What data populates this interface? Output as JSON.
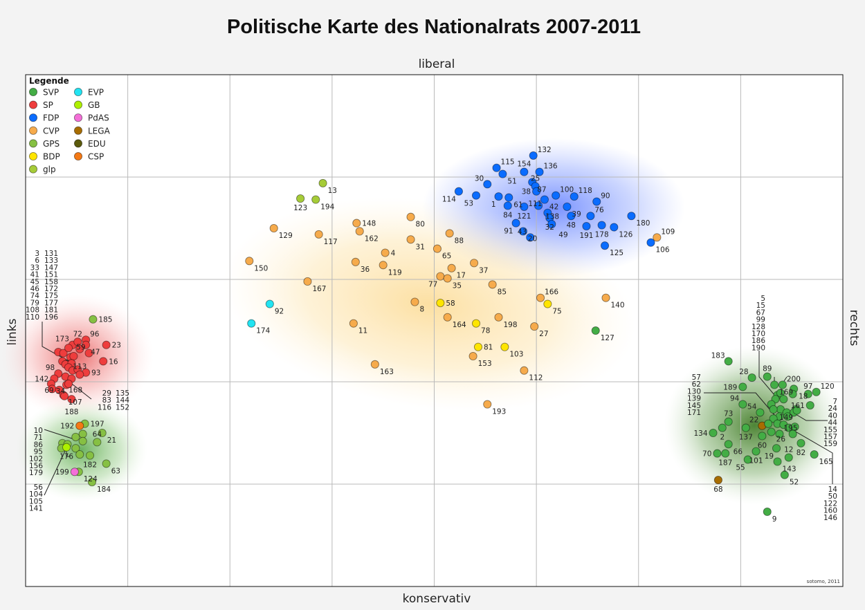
{
  "chart_data": {
    "type": "scatter",
    "title": "Politische Karte des Nationalrats 2007-2011",
    "xlabel_left": "links",
    "xlabel_right": "rechts",
    "ylabel_top": "liberal",
    "ylabel_bottom": "konservativ",
    "credit": "sotomo, 2011",
    "xlim": [
      -400,
      400
    ],
    "ylim": [
      -250,
      250
    ],
    "grid": true,
    "legend": {
      "title": "Legende",
      "placement": "top-left",
      "entries": [
        "SVP",
        "SP",
        "FDP",
        "CVP",
        "GPS",
        "BDP",
        "glp",
        "EVP",
        "GB",
        "PdAS",
        "LEGA",
        "EDU",
        "CSP"
      ]
    },
    "party_colors": {
      "SVP": "#43ad45",
      "SP": "#ee3d3d",
      "FDP": "#0a6cff",
      "CVP": "#f6ab4c",
      "GPS": "#86c043",
      "BDP": "#ffe500",
      "glp": "#a6cc38",
      "EVP": "#22e4f2",
      "GB": "#aef000",
      "PdAS": "#f46fd8",
      "LEGA": "#a86d00",
      "EDU": "#5b5a0c",
      "CSP": "#f47914"
    },
    "points": [
      [
        "13",
        "glp",
        -109,
        144,
        "se"
      ],
      [
        "123",
        "glp",
        -131,
        129,
        "s"
      ],
      [
        "194",
        "glp",
        -116,
        128,
        "se"
      ],
      [
        "129",
        "CVP",
        -157,
        100,
        "se"
      ],
      [
        "117",
        "CVP",
        -113,
        94,
        "se"
      ],
      [
        "148",
        "CVP",
        -76,
        105,
        "e"
      ],
      [
        "162",
        "CVP",
        -73,
        97,
        "se"
      ],
      [
        "80",
        "CVP",
        -23,
        111,
        "se"
      ],
      [
        "31",
        "CVP",
        -23,
        89,
        "se"
      ],
      [
        "88",
        "CVP",
        15,
        95,
        "se"
      ],
      [
        "65",
        "CVP",
        3,
        80,
        "se"
      ],
      [
        "4",
        "CVP",
        -48,
        76,
        "e"
      ],
      [
        "36",
        "CVP",
        -77,
        67,
        "se"
      ],
      [
        "119",
        "CVP",
        -50,
        64,
        "se"
      ],
      [
        "150",
        "CVP",
        -181,
        68,
        "se"
      ],
      [
        "167",
        "CVP",
        -124,
        48,
        "se"
      ],
      [
        "37",
        "CVP",
        39,
        66,
        "se"
      ],
      [
        "17",
        "CVP",
        17,
        61,
        "se"
      ],
      [
        "77",
        "CVP",
        6,
        53,
        "sw"
      ],
      [
        "35",
        "CVP",
        13,
        51,
        "se"
      ],
      [
        "85",
        "CVP",
        57,
        45,
        "se"
      ],
      [
        "8",
        "CVP",
        -19,
        28,
        "se"
      ],
      [
        "164",
        "CVP",
        13,
        13,
        "se"
      ],
      [
        "198",
        "CVP",
        63,
        13,
        "se"
      ],
      [
        "11",
        "CVP",
        -79,
        7,
        "se"
      ],
      [
        "27",
        "CVP",
        98,
        4,
        "se"
      ],
      [
        "166",
        "CVP",
        104,
        32,
        "ne"
      ],
      [
        "140",
        "CVP",
        168,
        32,
        "se"
      ],
      [
        "153",
        "CVP",
        38,
        -25,
        "se"
      ],
      [
        "112",
        "CVP",
        88,
        -39,
        "se"
      ],
      [
        "163",
        "CVP",
        -58,
        -33,
        "se"
      ],
      [
        "193",
        "CVP",
        52,
        -72,
        "se"
      ],
      [
        "109",
        "CVP",
        218,
        91,
        "ne"
      ],
      [
        "58",
        "BDP",
        6,
        27,
        "e"
      ],
      [
        "78",
        "BDP",
        41,
        7,
        "se"
      ],
      [
        "81",
        "BDP",
        43,
        -16,
        "se"
      ],
      [
        "103",
        "BDP",
        69,
        -16,
        "se"
      ],
      [
        "75",
        "BDP",
        111,
        26,
        "se"
      ],
      [
        "92",
        "EVP",
        -161,
        26,
        "se"
      ],
      [
        "174",
        "EVP",
        -179,
        7,
        "se"
      ],
      [
        "127",
        "SVP",
        158,
        0,
        "se"
      ],
      [
        "132",
        "FDP",
        97,
        171,
        "ne"
      ],
      [
        "115",
        "FDP",
        61,
        159,
        "ne"
      ],
      [
        "154",
        "FDP",
        88,
        155,
        "n"
      ],
      [
        "136",
        "FDP",
        103,
        155,
        "ne"
      ],
      [
        "51",
        "FDP",
        67,
        153,
        "se"
      ],
      [
        "30",
        "FDP",
        52,
        143,
        "nw"
      ],
      [
        "87",
        "FDP",
        96,
        145,
        "w"
      ],
      [
        "25",
        "FDP",
        99,
        141,
        "se"
      ],
      [
        "38",
        "FDP",
        100,
        136,
        "se"
      ],
      [
        "114",
        "FDP",
        24,
        136,
        "sw"
      ],
      [
        "53",
        "FDP",
        41,
        132,
        "sw"
      ],
      [
        "61",
        "FDP",
        73,
        130,
        "ne"
      ],
      [
        "1",
        "FDP",
        63,
        131,
        "sw"
      ],
      [
        "100",
        "FDP",
        119,
        132,
        "ne"
      ],
      [
        "118",
        "FDP",
        137,
        131,
        "ne"
      ],
      [
        "90",
        "FDP",
        159,
        126,
        "ne"
      ],
      [
        "42",
        "FDP",
        108,
        128,
        "se"
      ],
      [
        "84",
        "FDP",
        72,
        122,
        "sw"
      ],
      [
        "121",
        "FDP",
        88,
        121,
        "s"
      ],
      [
        "138",
        "FDP",
        102,
        122,
        "s"
      ],
      [
        "39",
        "FDP",
        130,
        121,
        "se"
      ],
      [
        "111",
        "FDP",
        111,
        115,
        "e"
      ],
      [
        "32",
        "FDP",
        113,
        110,
        "s"
      ],
      [
        "48",
        "FDP",
        134,
        112,
        "se"
      ],
      [
        "76",
        "FDP",
        153,
        112,
        "ne"
      ],
      [
        "180",
        "FDP",
        193,
        112,
        "se"
      ],
      [
        "49",
        "FDP",
        115,
        104,
        "se"
      ],
      [
        "191",
        "FDP",
        149,
        102,
        "s"
      ],
      [
        "178",
        "FDP",
        164,
        103,
        "s"
      ],
      [
        "126",
        "FDP",
        176,
        101,
        "se"
      ],
      [
        "91",
        "FDP",
        80,
        105,
        "sw"
      ],
      [
        "20",
        "FDP",
        87,
        97,
        "sw"
      ],
      [
        "43",
        "FDP",
        94,
        91,
        "se"
      ],
      [
        "125",
        "FDP",
        167,
        83,
        "se"
      ],
      [
        "106",
        "FDP",
        212,
        86,
        "se"
      ],
      [
        "173",
        "SP",
        -354,
        -14,
        "nw"
      ],
      [
        "72",
        "SP",
        -349,
        -11,
        "n"
      ],
      [
        "96",
        "SP",
        -341,
        -9,
        "ne"
      ],
      [
        "47",
        "SP",
        -341,
        -14,
        "ne"
      ],
      [
        "",
        "SP",
        -347,
        -18,
        ""
      ],
      [
        "59",
        "SP",
        -338,
        -22,
        "e"
      ],
      [
        "23",
        "SP",
        -321,
        -14,
        "e"
      ],
      [
        "16",
        "SP",
        -324,
        -30,
        "e"
      ],
      [
        "",
        "SP",
        -368,
        -21,
        ""
      ],
      [
        "",
        "SP",
        -363,
        -22,
        ""
      ],
      [
        "",
        "SP",
        -358,
        -17,
        ""
      ],
      [
        "",
        "SP",
        -356,
        -26,
        ""
      ],
      [
        "",
        "SP",
        -353,
        -25,
        ""
      ],
      [
        "",
        "SP",
        -364,
        -30,
        ""
      ],
      [
        "",
        "SP",
        -361,
        -33,
        ""
      ],
      [
        "",
        "SP",
        -355,
        -32,
        ""
      ],
      [
        "",
        "SP",
        -358,
        -36,
        ""
      ],
      [
        "",
        "SP",
        -354,
        -39,
        ""
      ],
      [
        "",
        "SP",
        -349,
        -38,
        ""
      ],
      [
        "93",
        "SP",
        -341,
        -41,
        "e"
      ],
      [
        "113",
        "SP",
        -347,
        -43,
        "se"
      ],
      [
        "98",
        "SP",
        -368,
        -42,
        "nw"
      ],
      [
        "142",
        "SP",
        -372,
        -47,
        "w"
      ],
      [
        "34",
        "SP",
        -375,
        -52,
        "w"
      ],
      [
        "",
        "SP",
        -374,
        -57,
        ""
      ],
      [
        "",
        "SP",
        -361,
        -45,
        ""
      ],
      [
        "",
        "SP",
        -355,
        -47,
        ""
      ],
      [
        "",
        "SP",
        -360,
        -53,
        ""
      ],
      [
        "",
        "SP",
        -358,
        -52,
        ""
      ],
      [
        "69",
        "SP",
        -367,
        -58,
        "sw"
      ],
      [
        "107",
        "SP",
        -363,
        -63,
        "w"
      ],
      [
        "168",
        "SP",
        -362,
        -64,
        "s"
      ],
      [
        "188",
        "SP",
        -355,
        -67,
        "s"
      ],
      [
        "185",
        "GPS",
        -334,
        11,
        "se"
      ],
      [
        "197",
        "GPS",
        -342,
        -91,
        "e"
      ],
      [
        "192",
        "CSP",
        -347,
        -93,
        "w"
      ],
      [
        "21",
        "GPS",
        -325,
        -100,
        "se"
      ],
      [
        "",
        "GPS",
        -344,
        -101,
        ""
      ],
      [
        "",
        "GPS",
        -351,
        -104,
        ""
      ],
      [
        "",
        "GPS",
        -344,
        -108,
        ""
      ],
      [
        "64",
        "GPS",
        -330,
        -109,
        "se"
      ],
      [
        "",
        "GPS",
        -364,
        -110,
        ""
      ],
      [
        "",
        "GPS",
        -359,
        -111,
        ""
      ],
      [
        "",
        "GPS",
        -365,
        -115,
        ""
      ],
      [
        "",
        "GPS",
        -351,
        -115,
        ""
      ],
      [
        "176",
        "GB",
        -360,
        -114,
        "s"
      ],
      [
        "",
        "GPS",
        -347,
        -121,
        ""
      ],
      [
        "182",
        "GPS",
        -337,
        -122,
        "s"
      ],
      [
        "63",
        "GPS",
        -321,
        -130,
        "se"
      ],
      [
        "124",
        "GPS",
        -348,
        -138,
        "e"
      ],
      [
        "199",
        "PdAS",
        -352,
        -138,
        "w"
      ],
      [
        "184",
        "GPS",
        -335,
        -148,
        "se"
      ],
      [
        "183",
        "SVP",
        288,
        -30,
        "nw"
      ],
      [
        "28",
        "SVP",
        311,
        -46,
        "nw"
      ],
      [
        "89",
        "SVP",
        326,
        -45,
        "n"
      ],
      [
        "189",
        "SVP",
        302,
        -55,
        "w"
      ],
      [
        "169",
        "SVP",
        333,
        -53,
        "n"
      ],
      [
        "200",
        "SVP",
        341,
        -53,
        "ne"
      ],
      [
        "18",
        "SVP",
        352,
        -57,
        "n"
      ],
      [
        "",
        "SVP",
        351,
        -62,
        ""
      ],
      [
        "97",
        "SVP",
        366,
        -62,
        "n"
      ],
      [
        "120",
        "SVP",
        374,
        -60,
        "ne"
      ],
      [
        "",
        "SVP",
        336,
        -63,
        ""
      ],
      [
        "",
        "SVP",
        339,
        -61,
        ""
      ],
      [
        "",
        "SVP",
        342,
        -67,
        ""
      ],
      [
        "",
        "SVP",
        334,
        -67,
        ""
      ],
      [
        "149",
        "SVP",
        354,
        -77,
        "sw"
      ],
      [
        "161",
        "SVP",
        368,
        -73,
        "e"
      ],
      [
        "94",
        "SVP",
        302,
        -72,
        "nw"
      ],
      [
        "",
        "SVP",
        330,
        -72,
        ""
      ],
      [
        "",
        "SVP",
        339,
        -77,
        ""
      ],
      [
        "54",
        "SVP",
        319,
        -80,
        "nw"
      ],
      [
        "",
        "SVP",
        332,
        -77,
        ""
      ],
      [
        "",
        "SVP",
        345,
        -80,
        ""
      ],
      [
        "",
        "SVP",
        352,
        -80,
        ""
      ],
      [
        "",
        "SVP",
        355,
        -78,
        ""
      ],
      [
        "",
        "SVP",
        338,
        -84,
        ""
      ],
      [
        "",
        "SVP",
        332,
        -86,
        ""
      ],
      [
        "",
        "SVP",
        346,
        -84,
        ""
      ],
      [
        "73",
        "SVP",
        288,
        -89,
        "n"
      ],
      [
        "2",
        "SVP",
        282,
        -95,
        "s"
      ],
      [
        "134",
        "SVP",
        273,
        -100,
        "w"
      ],
      [
        "137",
        "SVP",
        305,
        -95,
        "s"
      ],
      [
        "22",
        "LEGA",
        321,
        -93,
        "nw"
      ],
      [
        "",
        "SVP",
        327,
        -91,
        ""
      ],
      [
        "",
        "SVP",
        336,
        -91,
        ""
      ],
      [
        "",
        "SVP",
        342,
        -92,
        ""
      ],
      [
        "",
        "SVP",
        347,
        -95,
        ""
      ],
      [
        "",
        "SVP",
        353,
        -94,
        ""
      ],
      [
        "26",
        "SVP",
        330,
        -99,
        "se"
      ],
      [
        "60",
        "SVP",
        321,
        -103,
        "s"
      ],
      [
        "195",
        "SVP",
        338,
        -101,
        "se"
      ],
      [
        "",
        "SVP",
        351,
        -101,
        ""
      ],
      [
        "66",
        "SVP",
        288,
        -111,
        "e"
      ],
      [
        "82",
        "SVP",
        359,
        -110,
        "s"
      ],
      [
        "19",
        "SVP",
        335,
        -115,
        "sw"
      ],
      [
        "70",
        "SVP",
        277,
        -120,
        "w"
      ],
      [
        "187",
        "SVP",
        285,
        -120,
        "e"
      ],
      [
        "101",
        "SVP",
        315,
        -118,
        "e"
      ],
      [
        "55",
        "SVP",
        307,
        -126,
        "s"
      ],
      [
        "143",
        "SVP",
        336,
        -128,
        "sw"
      ],
      [
        "12",
        "SVP",
        347,
        -124,
        "se"
      ],
      [
        "165",
        "SVP",
        372,
        -121,
        "se"
      ],
      [
        "52",
        "SVP",
        343,
        -141,
        "se"
      ],
      [
        "68",
        "LEGA",
        278,
        -146,
        "s"
      ],
      [
        "9",
        "SVP",
        326,
        -177,
        "se"
      ]
    ],
    "label_groups": [
      [
        "3",
        "6",
        "33",
        "41",
        "45",
        "46",
        "74",
        "79",
        "108",
        "110"
      ],
      [
        "131",
        "133",
        "147",
        "151",
        "158",
        "172",
        "175",
        "177",
        "181",
        "196"
      ],
      [
        "29",
        "83",
        "116"
      ],
      [
        "135",
        "144",
        "152"
      ],
      [
        "10",
        "71",
        "86",
        "95",
        "102",
        "156",
        "179"
      ],
      [
        "56",
        "104",
        "105",
        "141"
      ],
      [
        "5",
        "15",
        "67",
        "99",
        "128",
        "170",
        "186",
        "190"
      ],
      [
        "57",
        "62",
        "130",
        "139",
        "145",
        "171"
      ],
      [
        "7",
        "24",
        "40",
        "44",
        "155",
        "157",
        "159"
      ],
      [
        "14",
        "50",
        "122",
        "160",
        "146"
      ]
    ]
  }
}
